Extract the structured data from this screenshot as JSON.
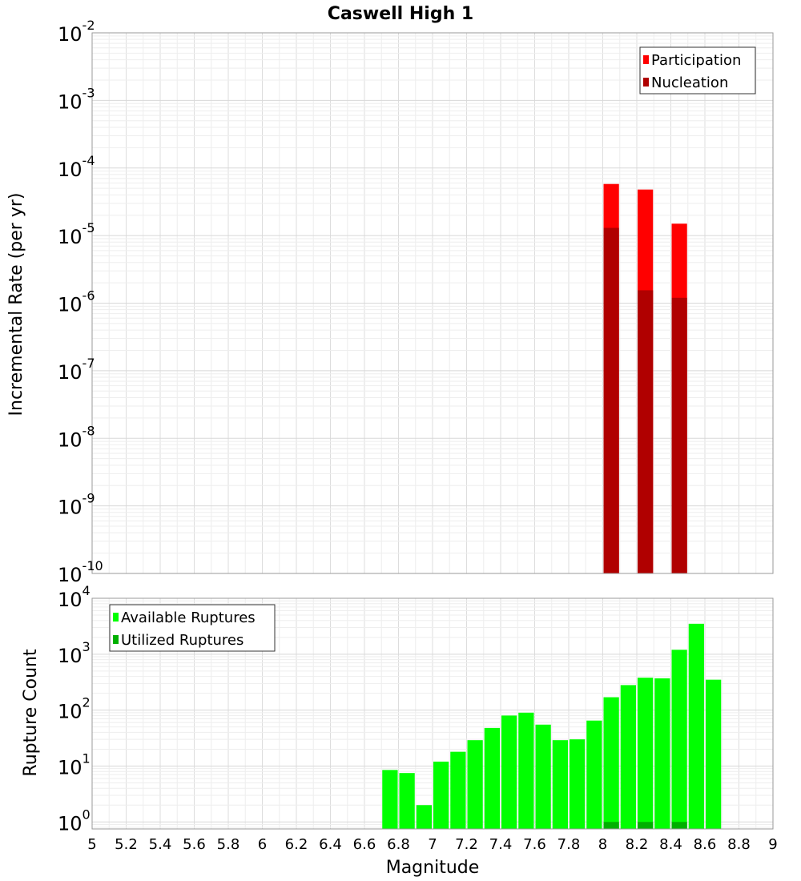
{
  "chart_data": [
    {
      "type": "bar",
      "title": "Caswell High 1",
      "xlabel": "",
      "ylabel": "Incremental Rate (per yr)",
      "yscale": "log",
      "xlim": [
        5,
        9
      ],
      "ylim": [
        1e-10,
        0.01
      ],
      "grid": true,
      "legend_position": "top-right",
      "y_ticks": [
        {
          "base": "10",
          "exp": "-10"
        },
        {
          "base": "10",
          "exp": "-9"
        },
        {
          "base": "10",
          "exp": "-8"
        },
        {
          "base": "10",
          "exp": "-7"
        },
        {
          "base": "10",
          "exp": "-6"
        },
        {
          "base": "10",
          "exp": "-5"
        },
        {
          "base": "10",
          "exp": "-4"
        },
        {
          "base": "10",
          "exp": "-3"
        },
        {
          "base": "10",
          "exp": "-2"
        }
      ],
      "bin_width": 0.1,
      "series": [
        {
          "name": "Participation",
          "color": "#ff0000",
          "x": [
            8.05,
            8.25,
            8.45
          ],
          "values": [
            5.8e-05,
            4.8e-05,
            1.5e-05
          ]
        },
        {
          "name": "Nucleation",
          "color": "#b00000",
          "x": [
            8.05,
            8.25,
            8.45
          ],
          "values": [
            1.3e-05,
            1.55e-06,
            1.2e-06
          ]
        }
      ]
    },
    {
      "type": "bar",
      "title": "",
      "xlabel": "Magnitude",
      "ylabel": "Rupture Count",
      "yscale": "log",
      "xlim": [
        5,
        9
      ],
      "ylim": [
        0.75,
        10000
      ],
      "grid": true,
      "legend_position": "top-left",
      "y_ticks": [
        {
          "base": "10",
          "exp": "0"
        },
        {
          "base": "10",
          "exp": "1"
        },
        {
          "base": "10",
          "exp": "2"
        },
        {
          "base": "10",
          "exp": "3"
        },
        {
          "base": "10",
          "exp": "4"
        }
      ],
      "x_ticks": [
        "5",
        "5.2",
        "5.4",
        "5.6",
        "5.8",
        "6",
        "6.2",
        "6.4",
        "6.6",
        "6.8",
        "7",
        "7.2",
        "7.4",
        "7.6",
        "7.8",
        "8",
        "8.2",
        "8.4",
        "8.6",
        "8.8",
        "9"
      ],
      "bin_width": 0.1,
      "series": [
        {
          "name": "Available Ruptures",
          "color": "#00ff00",
          "x": [
            6.75,
            6.85,
            6.95,
            7.05,
            7.15,
            7.25,
            7.35,
            7.45,
            7.55,
            7.65,
            7.75,
            7.85,
            7.95,
            8.05,
            8.15,
            8.25,
            8.35,
            8.45,
            8.55,
            8.65
          ],
          "values": [
            8.5,
            7.5,
            2,
            12,
            18,
            29,
            48,
            80,
            90,
            55,
            29,
            30,
            65,
            170,
            280,
            380,
            370,
            1200,
            3500,
            350
          ]
        },
        {
          "name": "Utilized Ruptures",
          "color": "#00b000",
          "x": [
            8.05,
            8.25,
            8.45
          ],
          "values": [
            1,
            1,
            1
          ]
        }
      ]
    }
  ]
}
